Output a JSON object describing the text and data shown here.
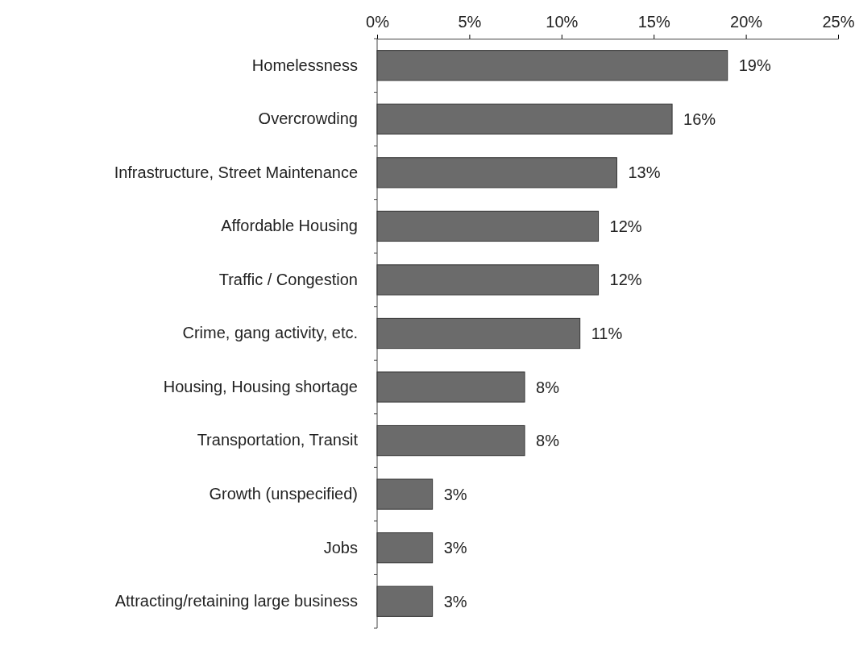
{
  "chart_data": {
    "type": "bar",
    "orientation": "horizontal",
    "categories": [
      "Homelessness",
      "Overcrowding",
      "Infrastructure, Street Maintenance",
      "Affordable Housing",
      "Traffic / Congestion",
      "Crime, gang activity, etc.",
      "Housing, Housing shortage",
      "Transportation, Transit",
      "Growth (unspecified)",
      "Jobs",
      "Attracting/retaining large business"
    ],
    "values": [
      19,
      16,
      13,
      12,
      12,
      11,
      8,
      8,
      3,
      3,
      3
    ],
    "color": "#6b6b6b",
    "xlim": [
      0,
      25
    ],
    "xticks": [
      {
        "value": 0,
        "label": "0%"
      },
      {
        "value": 5,
        "label": "5%"
      },
      {
        "value": 10,
        "label": "10%"
      },
      {
        "value": 15,
        "label": "15%"
      },
      {
        "value": 20,
        "label": "20%"
      },
      {
        "value": 25,
        "label": "25%"
      }
    ],
    "value_labels": [
      "19%",
      "16%",
      "13%",
      "12%",
      "12%",
      "11%",
      "8%",
      "8%",
      "3%",
      "3%",
      "3%"
    ],
    "grid": false
  }
}
